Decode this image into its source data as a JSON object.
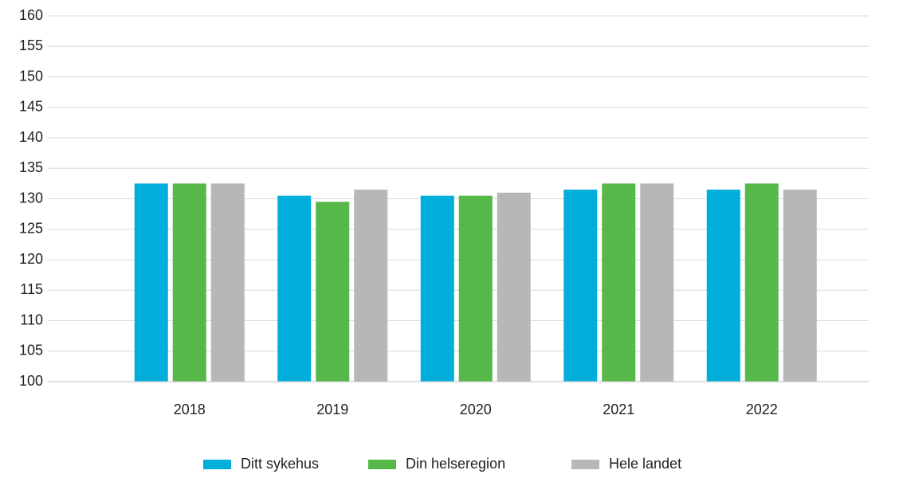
{
  "chart_data": {
    "type": "bar",
    "categories": [
      "2018",
      "2019",
      "2020",
      "2021",
      "2022"
    ],
    "series": [
      {
        "name": "Ditt sykehus",
        "color": "#00aedb",
        "values": [
          132.5,
          130.5,
          130.5,
          131.5,
          131.5
        ]
      },
      {
        "name": "Din helseregion",
        "color": "#55b848",
        "values": [
          132.5,
          129.5,
          130.5,
          132.5,
          132.5
        ]
      },
      {
        "name": "Hele landet",
        "color": "#b7b7b9",
        "values": [
          132.5,
          131.5,
          131,
          132.5,
          131.5
        ]
      }
    ],
    "ylim": [
      100,
      160
    ],
    "yticks": [
      100,
      105,
      110,
      115,
      120,
      125,
      130,
      135,
      140,
      145,
      150,
      155,
      160
    ],
    "grid": true,
    "legend": "bottom"
  }
}
